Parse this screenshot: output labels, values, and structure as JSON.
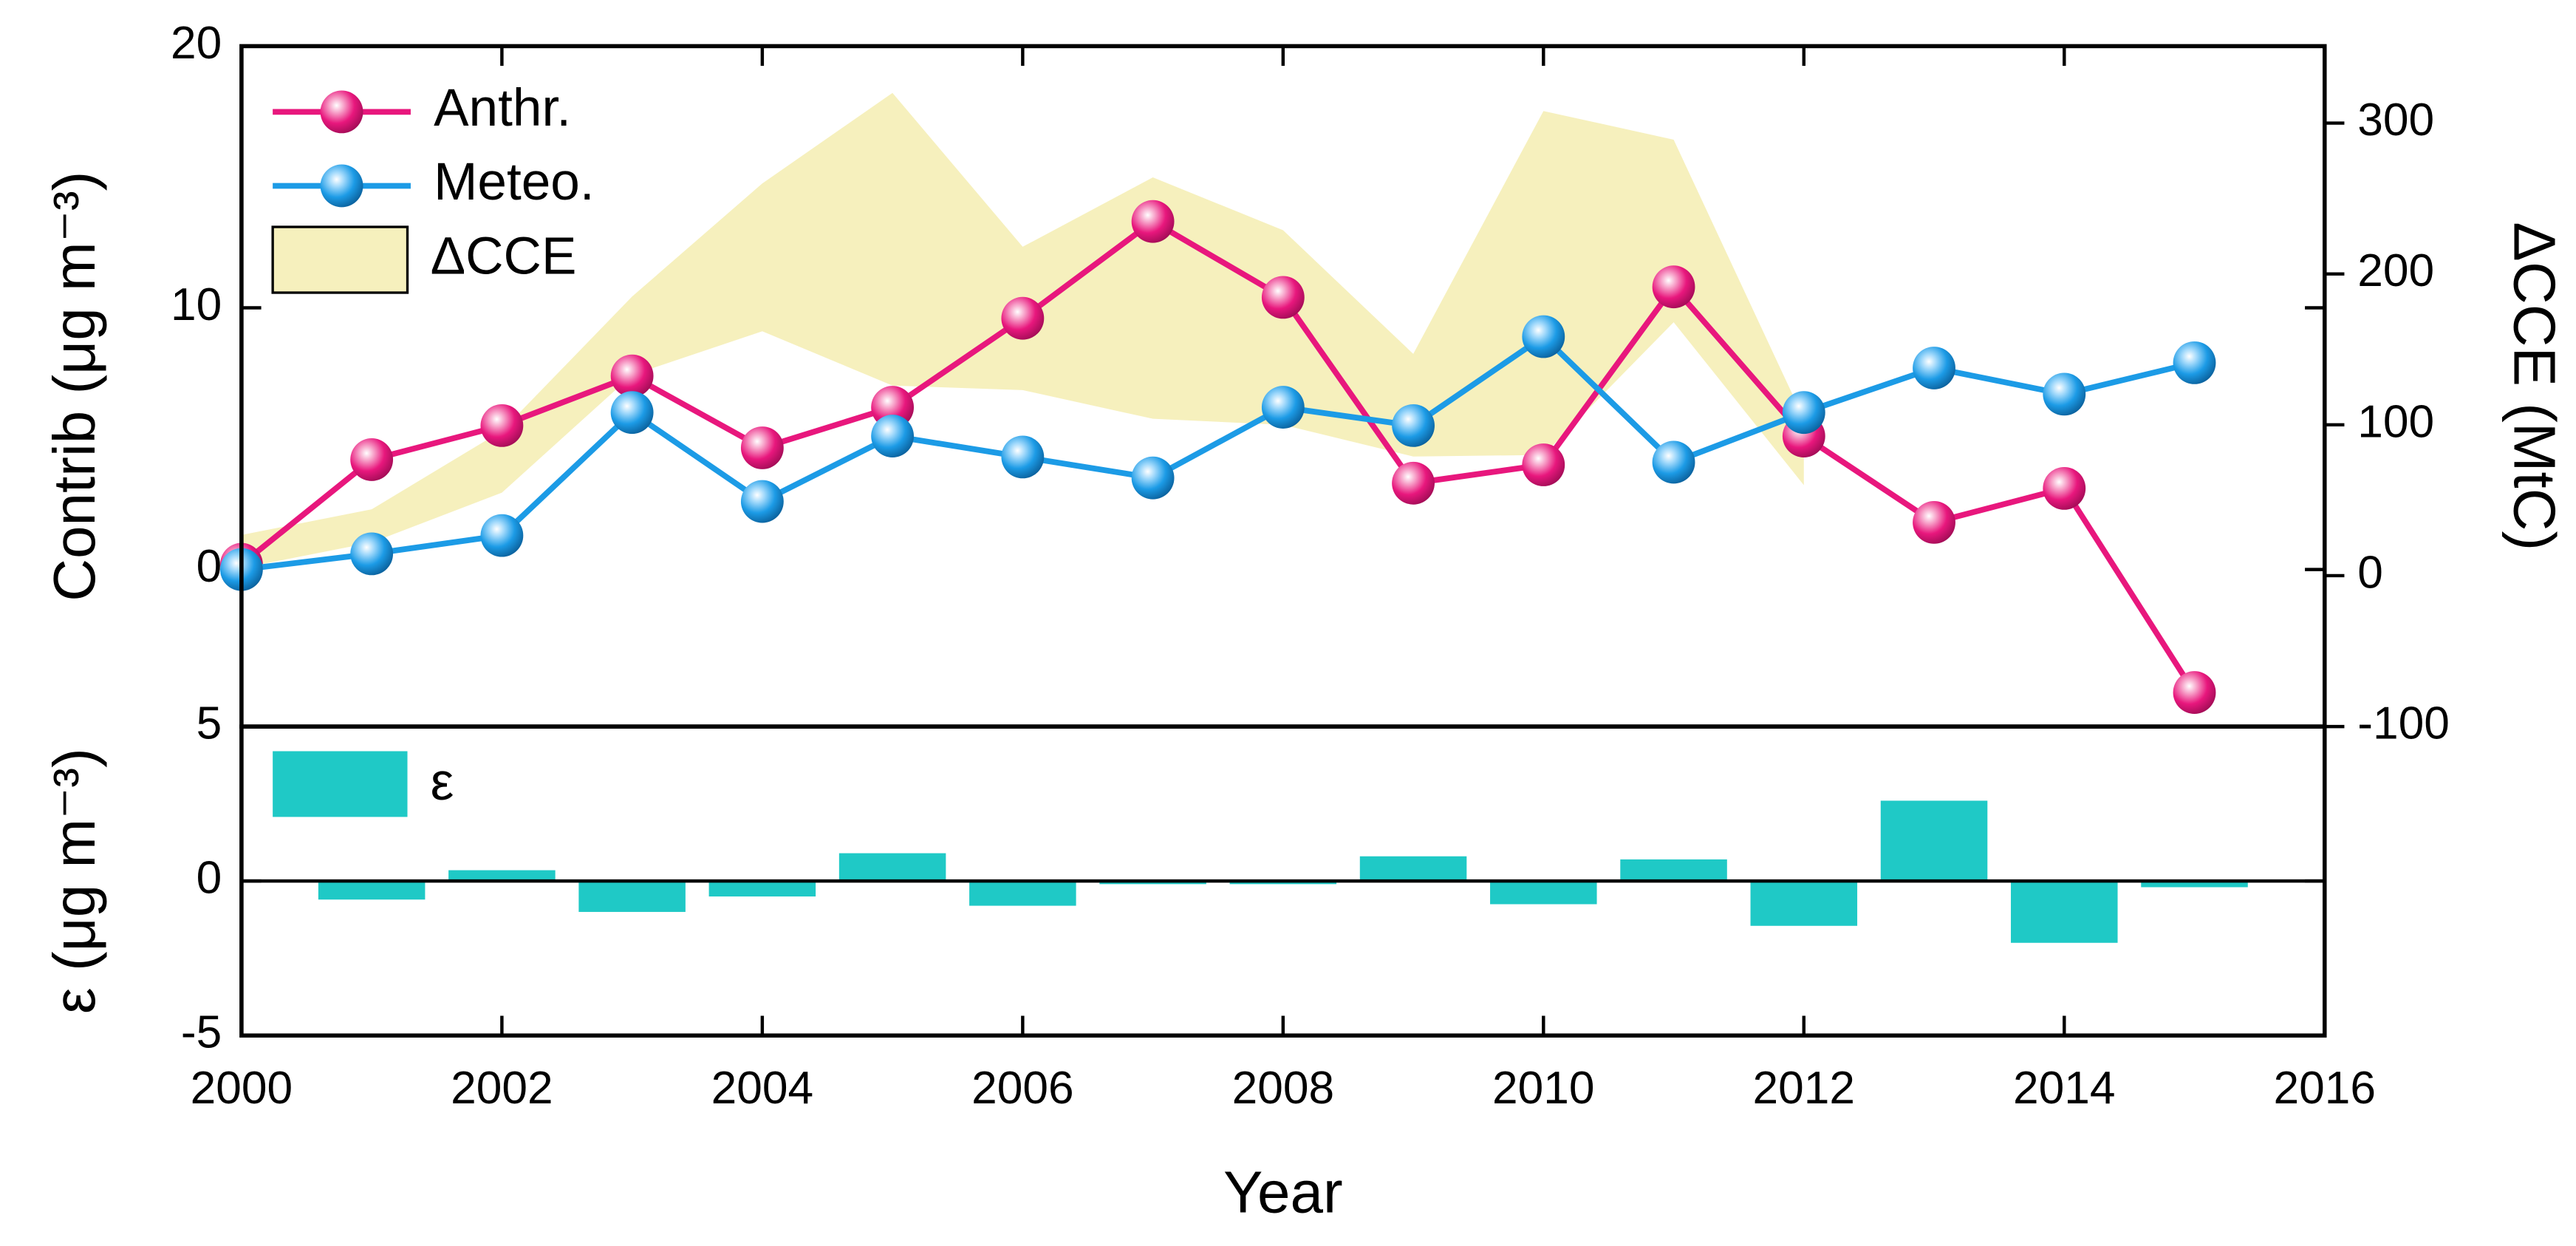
{
  "chart_data": [
    {
      "type": "line",
      "ylabel": "Contrib (μg m⁻³)",
      "y2label": "ΔCCE (MtC)",
      "xlim": [
        2000,
        2016
      ],
      "ylim": [
        -6,
        20
      ],
      "yticks": [
        0,
        10,
        20
      ],
      "y2lim": [
        -100,
        351
      ],
      "y2ticks": [
        -100,
        0,
        100,
        200,
        300
      ],
      "x": [
        2000,
        2001,
        2002,
        2003,
        2004,
        2005,
        2006,
        2007,
        2008,
        2009,
        2010,
        2011,
        2012,
        2013,
        2014,
        2015
      ],
      "series": [
        {
          "name": "Anthr.",
          "color": "#e8177d",
          "values": [
            0.2,
            4.2,
            5.5,
            7.4,
            4.65,
            6.2,
            9.6,
            13.3,
            10.4,
            3.3,
            4.0,
            10.8,
            5.1,
            1.8,
            3.1,
            -4.7
          ]
        },
        {
          "name": "Meteo.",
          "color": "#1c9be6",
          "values": [
            0,
            0.6,
            1.3,
            6.0,
            2.6,
            5.1,
            4.3,
            3.5,
            6.2,
            5.5,
            8.9,
            4.1,
            6.0,
            7.7,
            6.7,
            7.9
          ]
        }
      ],
      "band": {
        "name": "ΔCCE",
        "color": "#f6f0bd",
        "axis": "y2",
        "x": [
          2000,
          2001,
          2002,
          2003,
          2004,
          2005,
          2006,
          2007,
          2008,
          2009,
          2010,
          2011,
          2012
        ],
        "upper": [
          27,
          44,
          96,
          185,
          260,
          320,
          218,
          264,
          229,
          147,
          308,
          289,
          104
        ],
        "lower": [
          5,
          22,
          55,
          133,
          162,
          126,
          123,
          104,
          100,
          79,
          80,
          168,
          60
        ]
      }
    },
    {
      "type": "bar",
      "ylabel": "ε (μg m⁻³)",
      "xlabel": "Year",
      "xlim": [
        2000,
        2016
      ],
      "xticks": [
        2000,
        2002,
        2004,
        2006,
        2008,
        2010,
        2012,
        2014,
        2016
      ],
      "ylim": [
        -5,
        5
      ],
      "yticks": [
        -5,
        0,
        5
      ],
      "x": [
        2001,
        2002,
        2003,
        2004,
        2005,
        2006,
        2007,
        2008,
        2009,
        2010,
        2011,
        2012,
        2013,
        2014,
        2015
      ],
      "series": [
        {
          "name": "ε",
          "color": "#1fc9c6",
          "values": [
            -0.6,
            0.35,
            -1.0,
            -0.5,
            0.9,
            -0.8,
            -0.1,
            -0.1,
            0.8,
            -0.75,
            0.7,
            -1.45,
            2.6,
            -2.0,
            -0.2
          ]
        }
      ]
    }
  ]
}
